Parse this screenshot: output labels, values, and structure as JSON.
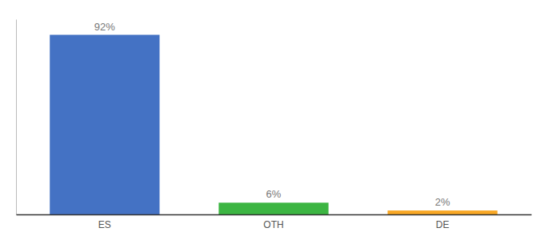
{
  "chart_data": {
    "type": "bar",
    "categories": [
      "ES",
      "OTH",
      "DE"
    ],
    "values": [
      92,
      6,
      2
    ],
    "value_labels": [
      "92%",
      "6%",
      "2%"
    ],
    "colors": [
      "#4472c4",
      "#3cb542",
      "#f9a825"
    ],
    "ylim": [
      0,
      100
    ],
    "data_labels": true,
    "tick_labels": "x",
    "grid": false
  }
}
